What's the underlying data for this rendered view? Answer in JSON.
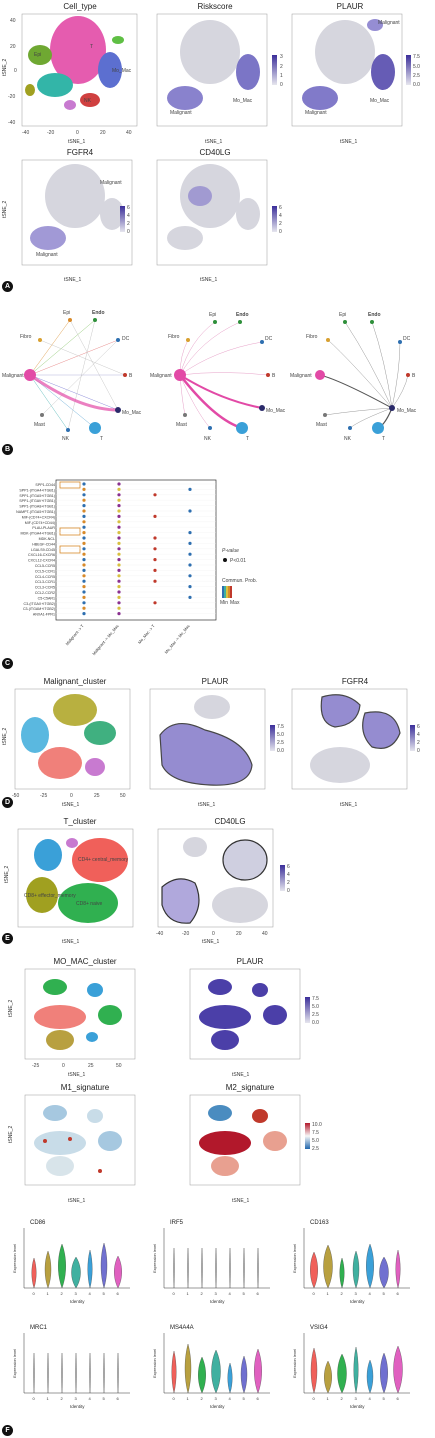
{
  "panelA": {
    "letter": "A",
    "plots": [
      {
        "title": "Cell_type",
        "annotations": [
          "B",
          "T",
          "Epi",
          "Endo",
          "Mo_Mac",
          "Fibro",
          "NK",
          "DC",
          "Mast",
          "Malignant"
        ]
      },
      {
        "title": "Riskscore",
        "annotations": [
          "Malignant",
          "Malignant",
          "Mo_Mac"
        ],
        "scale": [
          "3",
          "2",
          "1",
          "0"
        ]
      },
      {
        "title": "PLAUR",
        "annotations": [
          "Malignant",
          "Malignant",
          "Mo_Mac"
        ],
        "scale": [
          "7.5",
          "5.0",
          "2.5",
          "0.0"
        ]
      },
      {
        "title": "FGFR4",
        "annotations": [
          "Malignant",
          "Malignant"
        ],
        "scale": [
          "6",
          "4",
          "2",
          "0"
        ]
      },
      {
        "title": "CD40LG",
        "annotations": [],
        "scale": [
          "6",
          "4",
          "2",
          "0"
        ]
      }
    ],
    "xlabel": "tSNE_1",
    "ylabel": "tSNE_2",
    "xticks": [
      "-40",
      "-20",
      "0",
      "20",
      "40"
    ],
    "yticks": [
      "40",
      "20",
      "0",
      "-20",
      "-40"
    ]
  },
  "panelB": {
    "letter": "B",
    "nodes": [
      "Epi",
      "Endo",
      "DC",
      "B",
      "Mo_Mac",
      "T",
      "NK",
      "Mast",
      "Malignant",
      "Fibro"
    ]
  },
  "panelC": {
    "letter": "C",
    "rows": [
      "SPP1-CD44",
      "SPP1-(ITGA4+ITGB1)",
      "SPP1-(ITGA5+ITGB1)",
      "SPP1-(ITGAV+ITGB1)",
      "SPP1-(ITGA8+ITGB1)",
      "NAMPT-(ITGA5+ITGB1)",
      "MIF-(CD74+CXCR4)",
      "MIF-(CD74+CD44)",
      "PLAU-PLAUR",
      "MDK-(ITGA4+ITGB1)",
      "MDK-NCL",
      "HBEGF-CD44",
      "LGALS9-CD45",
      "CXCL16-CXCR6",
      "CXCL12-CXCR4",
      "CCL5-CCR5",
      "CCL5-CCR1",
      "CCL4-CCR5",
      "CCL3-CCR1",
      "CCL3-CCR5",
      "CCL2-CCR2",
      "C5-C5AR1",
      "C3-(ITGAX+ITGB2)",
      "C3-(ITGAM+ITGB2)",
      "ANXA1-FPR1"
    ],
    "columns": [
      "Malignant -> T",
      "Malignant -> Mo_Mac",
      "Mo_Mac -> T",
      "Mo_Mac -> Mo_Mac"
    ],
    "legend_pvalue": "P-value",
    "legend_p": "P<0.01",
    "legend_prob": "Commun. Prob.",
    "legend_min": "Min",
    "legend_max": "Max"
  },
  "panelD": {
    "letter": "D",
    "titles": [
      "Malignant_cluster",
      "PLAUR",
      "FGFR4"
    ],
    "plaur_scale": [
      "7.5",
      "5.0",
      "2.5",
      "0.0"
    ],
    "fgfr4_scale": [
      "6",
      "4",
      "2",
      "0"
    ],
    "xticks": [
      "-50",
      "-25",
      "0",
      "25",
      "50"
    ],
    "yticks": [
      "50",
      "25",
      "0",
      "-25",
      "-50"
    ]
  },
  "panelE": {
    "letter": "E",
    "titles": [
      "T_cluster",
      "CD40LG"
    ],
    "annotations": [
      "CD4+ central_memory",
      "CD8+ effector_memory",
      "CD8+ naive"
    ],
    "scale": [
      "6",
      "4",
      "2",
      "0"
    ],
    "xticks": [
      "-40",
      "-20",
      "0",
      "20",
      "40"
    ],
    "yticks": [
      "40",
      "20",
      "0",
      "-20",
      "-40"
    ]
  },
  "panelF": {
    "letter": "F",
    "titles": [
      "MO_MAC_cluster",
      "PLAUR",
      "M1_signature",
      "M2_signature"
    ],
    "plaur_scale": [
      "7.5",
      "5.0",
      "2.5",
      "0.0"
    ],
    "m2_scale": [
      "10.0",
      "7.5",
      "5.0",
      "2.5"
    ],
    "xticks": [
      "-25",
      "0",
      "25",
      "50"
    ],
    "yticks": [
      "50",
      "25",
      "0",
      "-25"
    ],
    "violins": [
      "CD86",
      "IRF5",
      "CD163",
      "MRC1",
      "MS4A4A",
      "VSIG4"
    ],
    "violin_ylabel": "Expression level",
    "violin_xlabel": "Identity",
    "identities": [
      "0",
      "1",
      "2",
      "3",
      "4",
      "5",
      "6"
    ]
  },
  "colors": {
    "purple": "#4b3fa8",
    "light": "#d6d6de",
    "pink": "#e24aa6",
    "orange": "#d88a2a",
    "red": "#c0392b",
    "blue": "#2e6fb0"
  }
}
